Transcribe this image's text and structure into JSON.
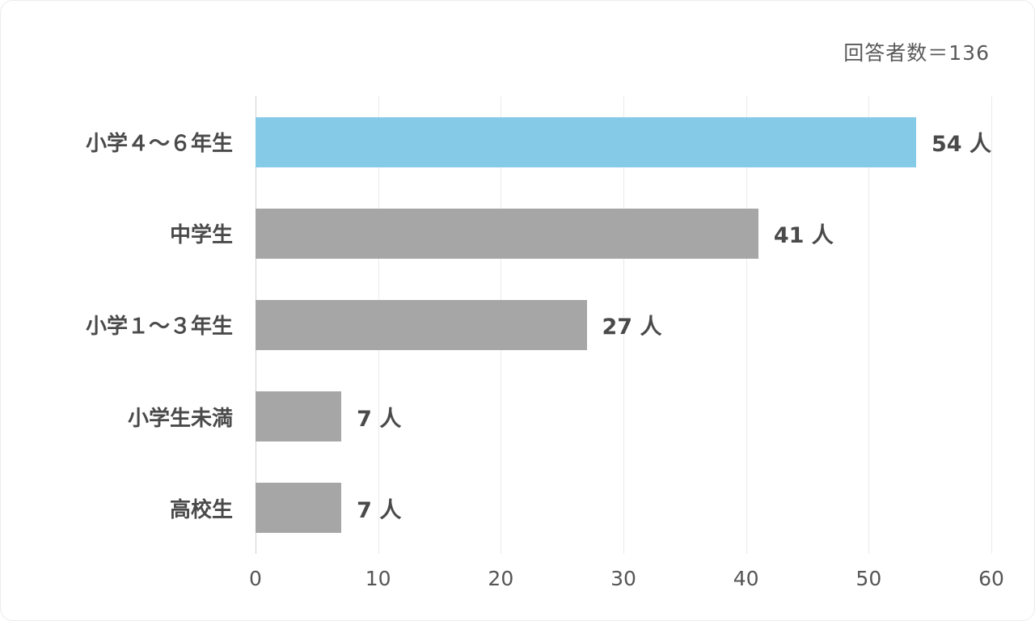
{
  "annotation": {
    "respondents": "回答者数＝136"
  },
  "chart_data": {
    "type": "bar",
    "orientation": "horizontal",
    "title": "",
    "annotation": "回答者数＝136",
    "categories": [
      "小学４～６年生",
      "中学生",
      "小学１～３年生",
      "小学生未満",
      "高校生"
    ],
    "values": [
      54,
      41,
      27,
      7,
      7
    ],
    "value_labels": [
      "54 人",
      "41 人",
      "27 人",
      "7 人",
      "7 人"
    ],
    "bar_colors": [
      "#85cbe8",
      "#a6a6a6",
      "#a6a6a6",
      "#a6a6a6",
      "#a6a6a6"
    ],
    "xlim": [
      0,
      60
    ],
    "x_ticks": [
      0,
      10,
      20,
      30,
      40,
      50,
      60
    ],
    "grid": true,
    "legend": "none",
    "colors": {
      "highlight_bar": "#85cbe8",
      "default_bar": "#a6a6a6",
      "gridline": "#eaeaea",
      "axis_line": "#cfcfcf",
      "text": "#4a4a4a",
      "annotation_text": "#595959",
      "background": "#ffffff"
    }
  }
}
